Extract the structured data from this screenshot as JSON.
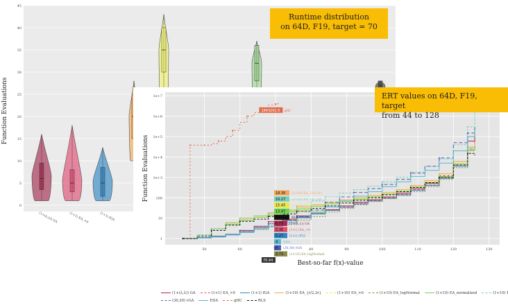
{
  "callouts": {
    "runtime": {
      "line1": "Runtime distribution",
      "line2": "on 64D, F19, target = 70"
    },
    "ert": {
      "line1": "ERT values on 64D, F19, target",
      "line2": "from 44 to 128"
    }
  },
  "chart_data": [
    {
      "type": "violin",
      "ylabel": "Function Evaluations",
      "yticks": [
        "0",
        "5",
        "10",
        "15",
        "20",
        "25",
        "30",
        "35",
        "40",
        "45"
      ],
      "ylim": [
        0,
        45
      ],
      "grid": true,
      "categories": [
        "(1+(λ,λ)) GA",
        "(1+1) EA_>0",
        "(1+1) fGA"
      ],
      "series": [
        {
          "category": "(1+(λ,λ)) GA",
          "color": "#a83a5b",
          "min": 1,
          "q1": 3.5,
          "median": 6,
          "q3": 9.5,
          "max": 16
        },
        {
          "category": "(1+1) EA_>0",
          "color": "#e05a7a",
          "min": 1,
          "q1": 3,
          "median": 5,
          "q3": 8,
          "max": 18
        },
        {
          "category": "(1+1) fGA",
          "color": "#3e8ec6",
          "min": 1,
          "q1": 2,
          "median": 5,
          "q3": 8.5,
          "max": 13
        },
        {
          "category": "(1+10) EA_{r/2,2r}",
          "color": "#f0b26a",
          "min": 10,
          "q1": 15,
          "median": 20,
          "q3": 25,
          "max": 28
        },
        {
          "category": "(1+10) EA_>0",
          "color": "#f1f27a",
          "min": 20,
          "q1": 30,
          "median": 35,
          "q3": 40,
          "max": 43
        },
        {
          "category": "(1+10) EA_normalized",
          "color": "#a8d89a",
          "min": 20,
          "q1": 28,
          "median": 32,
          "q3": 36,
          "max": 37
        },
        {
          "category": "RLS",
          "color": "#555555",
          "min": 20,
          "q1": 25,
          "median": 27,
          "q3": 28,
          "max": 28
        }
      ]
    },
    {
      "type": "line",
      "xlabel": "Best-so-far f(x)-value",
      "ylabel": "Function Evaluations",
      "yscale": "log",
      "yticks": [
        "1",
        "10",
        "100",
        "1e+3",
        "1e+4",
        "1e+5",
        "1e+6",
        "1e+7"
      ],
      "xticks": [
        50,
        60,
        70,
        80,
        90,
        100,
        110,
        120,
        130
      ],
      "xlim": [
        39,
        133
      ],
      "ylim": [
        0.5,
        15000000
      ],
      "grid": true,
      "series": [
        {
          "name": "(1+(λ,λ)) GA",
          "color": "#a8294d",
          "dash": "",
          "label": "6.73",
          "x": [
            44,
            48,
            52,
            56,
            60,
            64,
            68,
            72,
            76,
            80,
            84,
            88,
            92,
            96,
            100,
            104,
            108,
            112,
            116,
            120,
            124,
            126
          ],
          "y": [
            1,
            1.1,
            1.3,
            1.6,
            2.5,
            4,
            6.7,
            9,
            13,
            18,
            26,
            40,
            60,
            80,
            110,
            170,
            280,
            500,
            1200,
            6000,
            60000,
            150000
          ]
        },
        {
          "name": "(1+1) EA_>0",
          "color": "#e0506e",
          "dash": "4,2",
          "label": "5.36",
          "x": [
            44,
            48,
            52,
            56,
            60,
            64,
            68,
            72,
            76,
            80,
            84,
            88,
            92,
            96,
            100,
            104,
            108,
            112,
            116,
            120,
            124,
            126
          ],
          "y": [
            1,
            1.1,
            1.3,
            1.6,
            2.2,
            3.5,
            5.4,
            8,
            12,
            17,
            25,
            36,
            55,
            75,
            100,
            150,
            250,
            420,
            1000,
            4000,
            30000,
            60000
          ]
        },
        {
          "name": "(1+1) fGA",
          "color": "#2f86c1",
          "dash": "",
          "label": "5.27",
          "x": [
            44,
            48,
            52,
            56,
            60,
            64,
            68,
            72,
            76,
            80,
            84,
            88,
            92,
            96,
            100,
            104,
            108,
            112,
            116,
            120,
            124,
            126
          ],
          "y": [
            1,
            1.1,
            1.3,
            1.6,
            2.2,
            3.4,
            5.3,
            7.5,
            11,
            16,
            24,
            34,
            50,
            70,
            95,
            140,
            230,
            400,
            900,
            3500,
            25000,
            45000
          ]
        },
        {
          "name": "(1+10) EA_{r/2,2r}",
          "color": "#f0a85a",
          "dash": "",
          "label": "18.36",
          "x": [
            44,
            48,
            52,
            56,
            60,
            64,
            68,
            72,
            76,
            80,
            84,
            88,
            92,
            96,
            100,
            104,
            108,
            112,
            116,
            120,
            124,
            126
          ],
          "y": [
            1,
            1.5,
            3,
            6,
            10,
            13,
            18.4,
            25,
            35,
            45,
            60,
            80,
            100,
            130,
            180,
            250,
            400,
            700,
            1500,
            6000,
            30000,
            50000
          ]
        },
        {
          "name": "(1+10) EA_>0",
          "color": "#e8e84a",
          "dash": "4,2",
          "label": "15.45",
          "x": [
            44,
            48,
            52,
            56,
            60,
            64,
            68,
            72,
            76,
            80,
            84,
            88,
            92,
            96,
            100,
            104,
            108,
            112,
            116,
            120,
            124,
            126
          ],
          "y": [
            1,
            1.5,
            3,
            5.5,
            9,
            12,
            15.5,
            22,
            30,
            40,
            55,
            70,
            90,
            120,
            160,
            220,
            350,
            600,
            1200,
            5000,
            25000,
            40000
          ]
        },
        {
          "name": "(1+10) EA_logNormal",
          "color": "#8a8a4a",
          "dash": "2,2",
          "label": "3.73",
          "x": [
            44,
            48,
            52,
            56,
            60,
            64,
            68,
            72,
            76,
            80,
            84,
            88,
            92,
            96,
            100,
            104,
            108,
            112,
            116,
            120,
            124,
            126
          ],
          "y": [
            1,
            1.05,
            1.2,
            1.5,
            2,
            2.8,
            3.7,
            5,
            8,
            12,
            20,
            30,
            45,
            65,
            90,
            130,
            200,
            350,
            800,
            3000,
            20000,
            35000
          ]
        },
        {
          "name": "(1+10) EA_normalized",
          "color": "#6fd24a",
          "dash": "",
          "label": "13.97",
          "x": [
            44,
            48,
            52,
            56,
            60,
            64,
            68,
            72,
            76,
            80,
            84,
            88,
            92,
            96,
            100,
            104,
            108,
            112,
            116,
            120,
            124,
            126
          ],
          "y": [
            1,
            1.5,
            3,
            5,
            8,
            11,
            14,
            20,
            28,
            38,
            50,
            65,
            85,
            110,
            150,
            210,
            330,
            560,
            1100,
            4500,
            22000,
            35000
          ]
        },
        {
          "name": "(1+10) EA_var_ctrl",
          "color": "#7ad0b8",
          "dash": "3,2",
          "label": "16.27",
          "x": [
            44,
            48,
            52,
            56,
            60,
            64,
            68,
            72,
            76,
            80,
            84,
            88,
            92,
            96,
            100,
            104,
            108,
            112,
            116,
            120,
            124,
            126
          ],
          "y": [
            1,
            1.5,
            3,
            6,
            10,
            13,
            16.3,
            24,
            40,
            70,
            110,
            170,
            250,
            380,
            600,
            1000,
            1800,
            3500,
            8000,
            40000,
            300000,
            9000000
          ]
        },
        {
          "name": "(30,30) vGA",
          "color": "#4a5ab8",
          "dash": "5,3",
          "label": "4",
          "x": [
            44,
            48,
            52,
            56,
            60,
            64,
            68,
            72,
            76,
            80,
            84,
            88,
            92,
            96,
            100,
            104,
            108,
            112,
            116,
            120,
            124,
            126
          ],
          "y": [
            1,
            1.05,
            1.2,
            1.6,
            2.2,
            3,
            4,
            6,
            12,
            25,
            60,
            110,
            180,
            280,
            450,
            800,
            1600,
            3500,
            9000,
            50000,
            150000,
            300000
          ]
        },
        {
          "name": "EDA",
          "color": "#5ab8c8",
          "dash": "",
          "label": "4",
          "x": [
            44,
            48,
            52,
            56,
            60,
            64,
            68,
            72,
            76,
            80,
            84,
            88,
            92,
            96,
            100,
            104,
            108,
            112,
            116,
            120,
            124,
            126
          ],
          "y": [
            1,
            1.05,
            1.2,
            1.5,
            2,
            3,
            4,
            6,
            10,
            18,
            35,
            70,
            120,
            200,
            350,
            600,
            1100,
            2200,
            5000,
            20000,
            100000,
            200000
          ]
        },
        {
          "name": "gHC",
          "color": "#e06a4a",
          "dash": "2,3",
          "label": "1843201.5",
          "x": [
            44,
            45,
            46,
            48,
            50,
            52,
            54,
            56,
            58,
            60,
            62,
            64,
            66,
            68,
            70,
            71
          ],
          "y": [
            1,
            1,
            38000,
            38000,
            38000,
            45000,
            60000,
            100000,
            200000,
            500000,
            1000000,
            1500000,
            1843201.5,
            3500000,
            4000000,
            4000000
          ]
        },
        {
          "name": "RLS",
          "color": "#111111",
          "dash": "3,2",
          "label": "12.09",
          "x": [
            44,
            48,
            52,
            56,
            60,
            64,
            68,
            72,
            76,
            80,
            84,
            88,
            92,
            96,
            100,
            104,
            108,
            112,
            116,
            120,
            124,
            126
          ],
          "y": [
            1,
            1.3,
            2.5,
            4.5,
            7,
            9,
            12.1,
            16,
            22,
            30,
            40,
            55,
            75,
            100,
            140,
            200,
            320,
            550,
            1000,
            4000,
            15000,
            12000
          ]
        }
      ],
      "extra_labels": [
        "70.44"
      ]
    }
  ]
}
